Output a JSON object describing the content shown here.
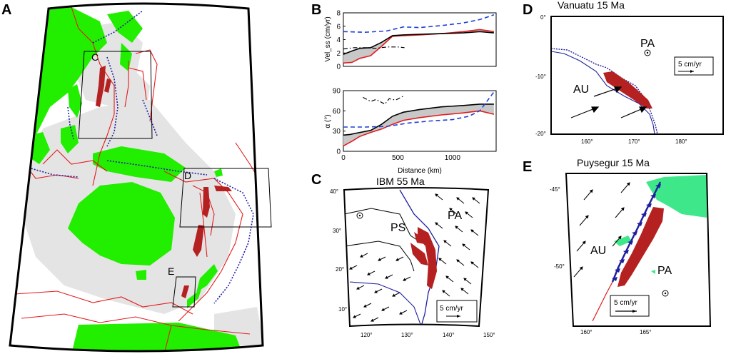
{
  "panels": {
    "A": {
      "label": "A",
      "boxes": [
        "C",
        "D",
        "E"
      ]
    },
    "B": {
      "label": "B",
      "chart_data": [
        {
          "type": "line",
          "ylabel": "Vel_ss (cm/yr)",
          "ylim": [
            0,
            8
          ],
          "yticks": [
            0,
            2,
            4,
            6,
            8
          ],
          "xlim": [
            0,
            1400
          ],
          "series": [
            {
              "name": "red",
              "color": "#e41a1c",
              "style": "solid",
              "x": [
                0,
                80,
                150,
                250,
                350,
                450,
                550,
                700,
                900,
                1100,
                1250,
                1380
              ],
              "y": [
                0.5,
                0.6,
                1.2,
                1.6,
                3.0,
                4.5,
                4.6,
                4.7,
                4.9,
                5.2,
                5.5,
                5.2
              ]
            },
            {
              "name": "black",
              "color": "#000000",
              "style": "solid",
              "x": [
                0,
                80,
                150,
                250,
                350,
                450,
                550,
                700,
                900,
                1100,
                1250,
                1380
              ],
              "y": [
                1.8,
                2.3,
                2.7,
                2.8,
                3.6,
                4.6,
                4.7,
                4.8,
                4.9,
                5.0,
                5.2,
                5.0
              ]
            },
            {
              "name": "blue-dashed",
              "color": "#1f3fd6",
              "style": "dashed",
              "x": [
                0,
                200,
                400,
                550,
                700,
                900,
                1100,
                1250,
                1380
              ],
              "y": [
                5.2,
                5.1,
                5.3,
                5.9,
                5.8,
                6.1,
                6.5,
                7.0,
                7.7
              ]
            },
            {
              "name": "black-dashdot",
              "color": "#000000",
              "style": "dashdot",
              "x": [
                0,
                100,
                200,
                300,
                400,
                500,
                560
              ],
              "y": [
                2.6,
                2.8,
                2.8,
                2.7,
                2.9,
                2.9,
                2.8
              ]
            }
          ]
        },
        {
          "type": "line",
          "ylabel": "α (°)",
          "xlabel": "Distance (km)",
          "ylim": [
            0,
            90
          ],
          "yticks": [
            0,
            30,
            60,
            90
          ],
          "xlim": [
            0,
            1400
          ],
          "xticks": [
            0,
            500,
            1000
          ],
          "series": [
            {
              "name": "red",
              "color": "#e41a1c",
              "style": "solid",
              "x": [
                0,
                80,
                150,
                250,
                350,
                450,
                550,
                700,
                900,
                1100,
                1250,
                1380
              ],
              "y": [
                8,
                15,
                22,
                28,
                33,
                40,
                46,
                50,
                54,
                57,
                60,
                55
              ]
            },
            {
              "name": "black",
              "color": "#000000",
              "style": "solid",
              "x": [
                0,
                60,
                150,
                250,
                350,
                450,
                550,
                700,
                900,
                1100,
                1250,
                1380
              ],
              "y": [
                24,
                25,
                28,
                31,
                40,
                52,
                58,
                62,
                66,
                68,
                70,
                70
              ]
            },
            {
              "name": "blue-dashed",
              "color": "#1f3fd6",
              "style": "dashed",
              "x": [
                0,
                200,
                400,
                600,
                800,
                1000,
                1150,
                1250,
                1380
              ],
              "y": [
                36,
                36,
                37,
                42,
                45,
                47,
                52,
                60,
                88
              ]
            },
            {
              "name": "black-dashdot",
              "color": "#000000",
              "style": "dashdot",
              "x": [
                180,
                250,
                300,
                380,
                420,
                480,
                550
              ],
              "y": [
                80,
                74,
                77,
                70,
                78,
                76,
                82
              ]
            }
          ]
        }
      ]
    },
    "C": {
      "label": "C",
      "title": "IBM 55 Ma",
      "plates": [
        "PS",
        "PA"
      ],
      "xticks": [
        "120°",
        "130°",
        "140°",
        "150°"
      ],
      "yticks": [
        "40°",
        "30°",
        "20°",
        "10°"
      ],
      "scale": "5 cm/yr"
    },
    "D": {
      "label": "D",
      "title": "Vanuatu 15 Ma",
      "plates": [
        "PA",
        "AU"
      ],
      "xticks": [
        "160°",
        "170°",
        "180°"
      ],
      "yticks": [
        "0°",
        "-10°",
        "-20°"
      ],
      "scale": "5 cm/yr"
    },
    "E": {
      "label": "E",
      "title": "Puysegur 15 Ma",
      "plates": [
        "AU",
        "PA"
      ],
      "xticks": [
        "160°",
        "165°"
      ],
      "yticks": [
        "-45°",
        "-50°"
      ],
      "scale": "5 cm/yr"
    }
  },
  "colors": {
    "land": "#22ee00",
    "shelf": "#e4e4e4",
    "slab": "#b52020",
    "boundary": "#e41a1c",
    "trench": "#1f1f9e",
    "band": "#c8c8c8"
  }
}
